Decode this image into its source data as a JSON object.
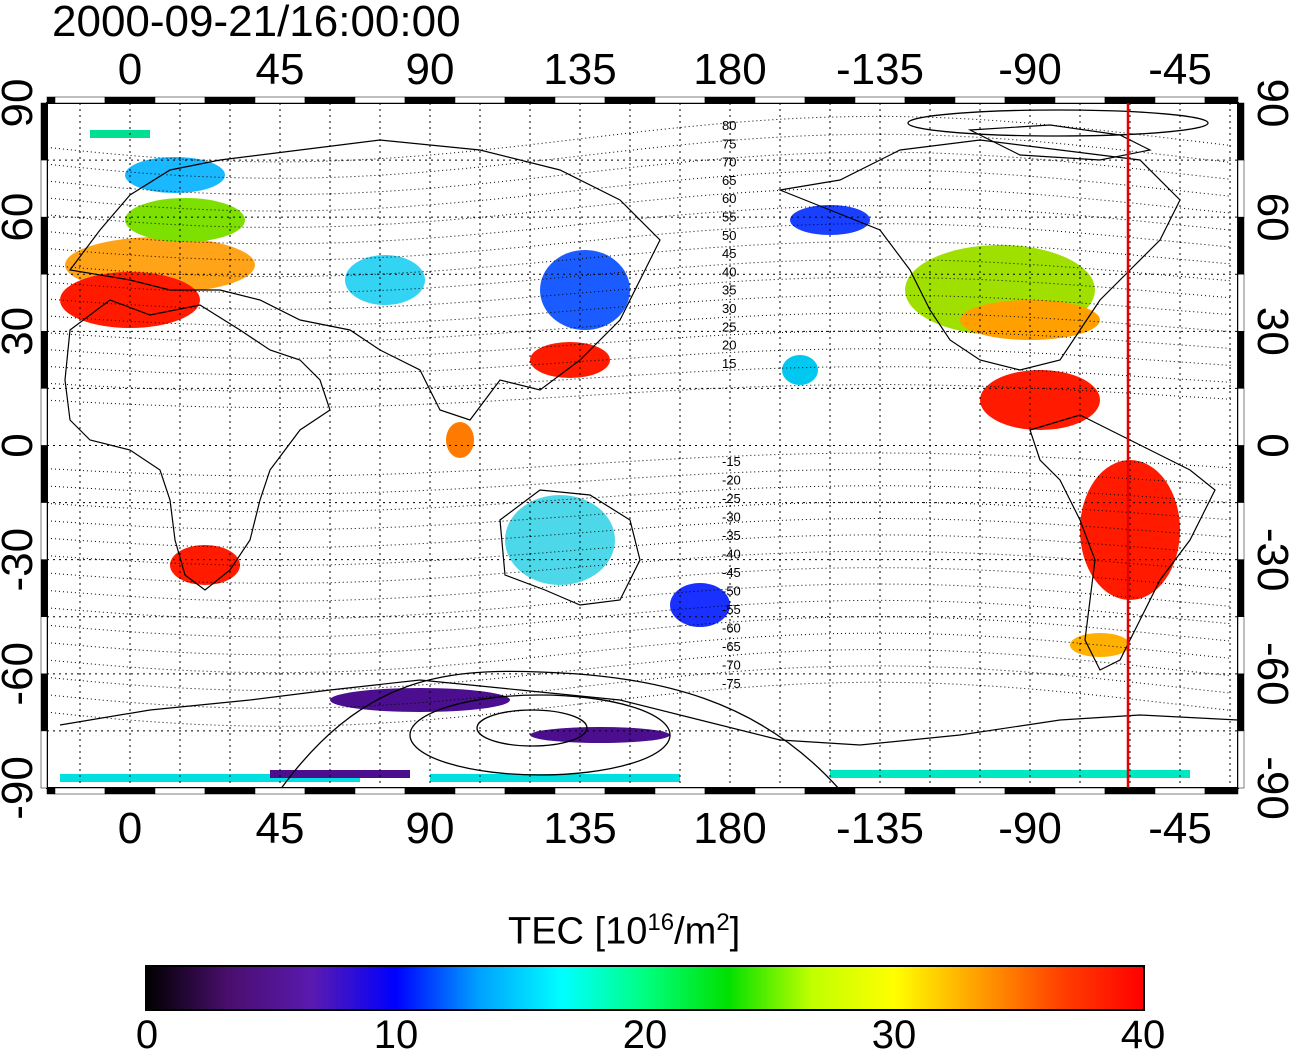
{
  "title": "2000-09-21/16:00:00",
  "map": {
    "top_lon_ticks": [
      "0",
      "45",
      "90",
      "135",
      "180",
      "-135",
      "-90",
      "-45"
    ],
    "bottom_lon_ticks": [
      "0",
      "45",
      "90",
      "135",
      "180",
      "-135",
      "-90",
      "-45"
    ],
    "left_lat_ticks": [
      "90",
      "60",
      "30",
      "0",
      "-30",
      "-60",
      "-90"
    ],
    "right_lat_ticks": [
      "90",
      "60",
      "30",
      "0",
      "-30",
      "-60",
      "-90"
    ],
    "magnetic_latitude_labels": [
      "80",
      "75",
      "70",
      "65",
      "60",
      "55",
      "50",
      "45",
      "40",
      "35",
      "30",
      "25",
      "20",
      "15",
      "-15",
      "-20",
      "-25",
      "-30",
      "-35",
      "-40",
      "-45",
      "-50",
      "-55",
      "-60",
      "-65",
      "-70",
      "-75"
    ],
    "meridian_marker_color": "#e60000",
    "grid": "dotted"
  },
  "colorbar": {
    "label_main": "TEC  [10",
    "label_exp1": "16",
    "label_mid": "/m",
    "label_exp2": "2",
    "label_end": "]",
    "ticks": [
      "0",
      "10",
      "20",
      "30",
      "40"
    ],
    "range": [
      0,
      40
    ],
    "colormap": [
      "#000000",
      "#4a0e6e",
      "#5a1ab0",
      "#0000ff",
      "#00a0ff",
      "#00ffff",
      "#00ff80",
      "#00e000",
      "#c0ff00",
      "#ffff00",
      "#ffa000",
      "#ff4000",
      "#ff0000"
    ]
  }
}
